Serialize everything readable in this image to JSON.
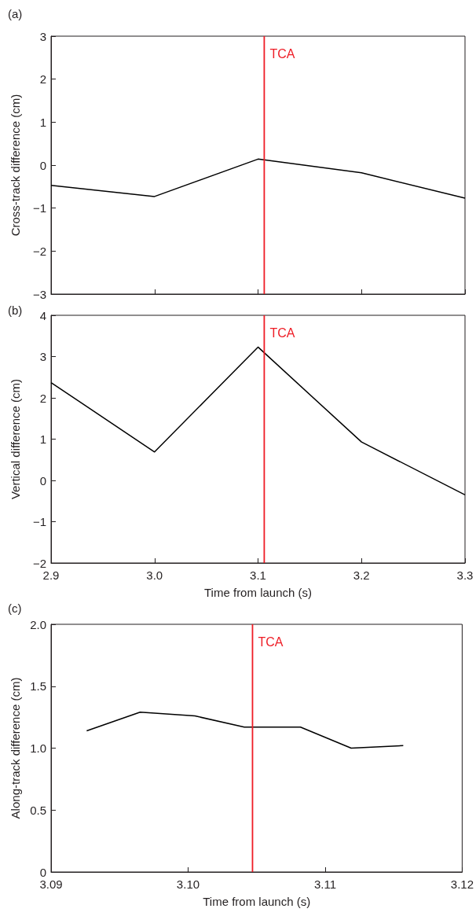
{
  "chart_data": [
    {
      "type": "line",
      "annotations": [
        "(a)"
      ],
      "ylabel": "Cross-track difference (cm)",
      "tick_labels": "y",
      "x": [
        2.9,
        3.0,
        3.1,
        3.2,
        3.3
      ],
      "series": [
        {
          "color": "#000000",
          "values": [
            -0.47,
            -0.73,
            0.14,
            -0.18,
            -0.77
          ]
        }
      ],
      "xlim": [
        2.9,
        3.3
      ],
      "xticks": [
        {
          "value": 2.9,
          "label": null
        },
        {
          "value": 3.0,
          "label": null
        },
        {
          "value": 3.1,
          "label": null
        },
        {
          "value": 3.2,
          "label": null
        },
        {
          "value": 3.3,
          "label": null
        }
      ],
      "ylim": [
        -3,
        3
      ],
      "yticks": [
        {
          "value": -3,
          "label": "−3"
        },
        {
          "value": -2,
          "label": "−2"
        },
        {
          "value": -1,
          "label": "−1"
        },
        0,
        1,
        2,
        3
      ],
      "ref_lines": [
        {
          "axis": "x",
          "value": 3.106,
          "label": "TCA",
          "color": "#ee1c25"
        }
      ]
    },
    {
      "type": "line",
      "annotations": [
        "(b)"
      ],
      "ylabel": "Vertical difference (cm)",
      "xlabel": "Time from launch (s)",
      "x": [
        2.9,
        3.0,
        3.1,
        3.2,
        3.3
      ],
      "series": [
        {
          "color": "#000000",
          "values": [
            2.37,
            0.69,
            3.23,
            0.93,
            -0.35
          ]
        }
      ],
      "xlim": [
        2.9,
        3.3
      ],
      "xticks": [
        2.9,
        {
          "value": 3.0,
          "label": "3.0"
        },
        3.1,
        3.2,
        3.3
      ],
      "ylim": [
        -2,
        4
      ],
      "yticks": [
        {
          "value": -2,
          "label": "−2"
        },
        {
          "value": -1,
          "label": "−1"
        },
        0,
        1,
        2,
        3,
        4
      ],
      "ref_lines": [
        {
          "axis": "x",
          "value": 3.106,
          "label": "TCA",
          "color": "#ee1c25"
        }
      ]
    },
    {
      "type": "line",
      "annotations": [
        "(c)"
      ],
      "ylabel": "Along-track difference (cm)",
      "xlabel": "Time from launch (s)",
      "x": [
        3.0926,
        3.0965,
        3.1005,
        3.1041,
        3.1082,
        3.1119,
        3.1157
      ],
      "series": [
        {
          "color": "#000000",
          "values": [
            1.14,
            1.29,
            1.26,
            1.17,
            1.17,
            1.0,
            1.02
          ]
        }
      ],
      "xlim": [
        3.09,
        3.12
      ],
      "xticks": [
        3.09,
        {
          "value": 3.1,
          "label": "3.10"
        },
        3.11,
        3.12
      ],
      "ylim": [
        0,
        2
      ],
      "yticks": [
        0,
        0.5,
        {
          "value": 1,
          "label": "1.0"
        },
        1.5,
        {
          "value": 2,
          "label": "2.0"
        }
      ],
      "ref_lines": [
        {
          "axis": "x",
          "value": 3.1047,
          "label": "TCA",
          "color": "#ee1c25"
        }
      ]
    }
  ]
}
